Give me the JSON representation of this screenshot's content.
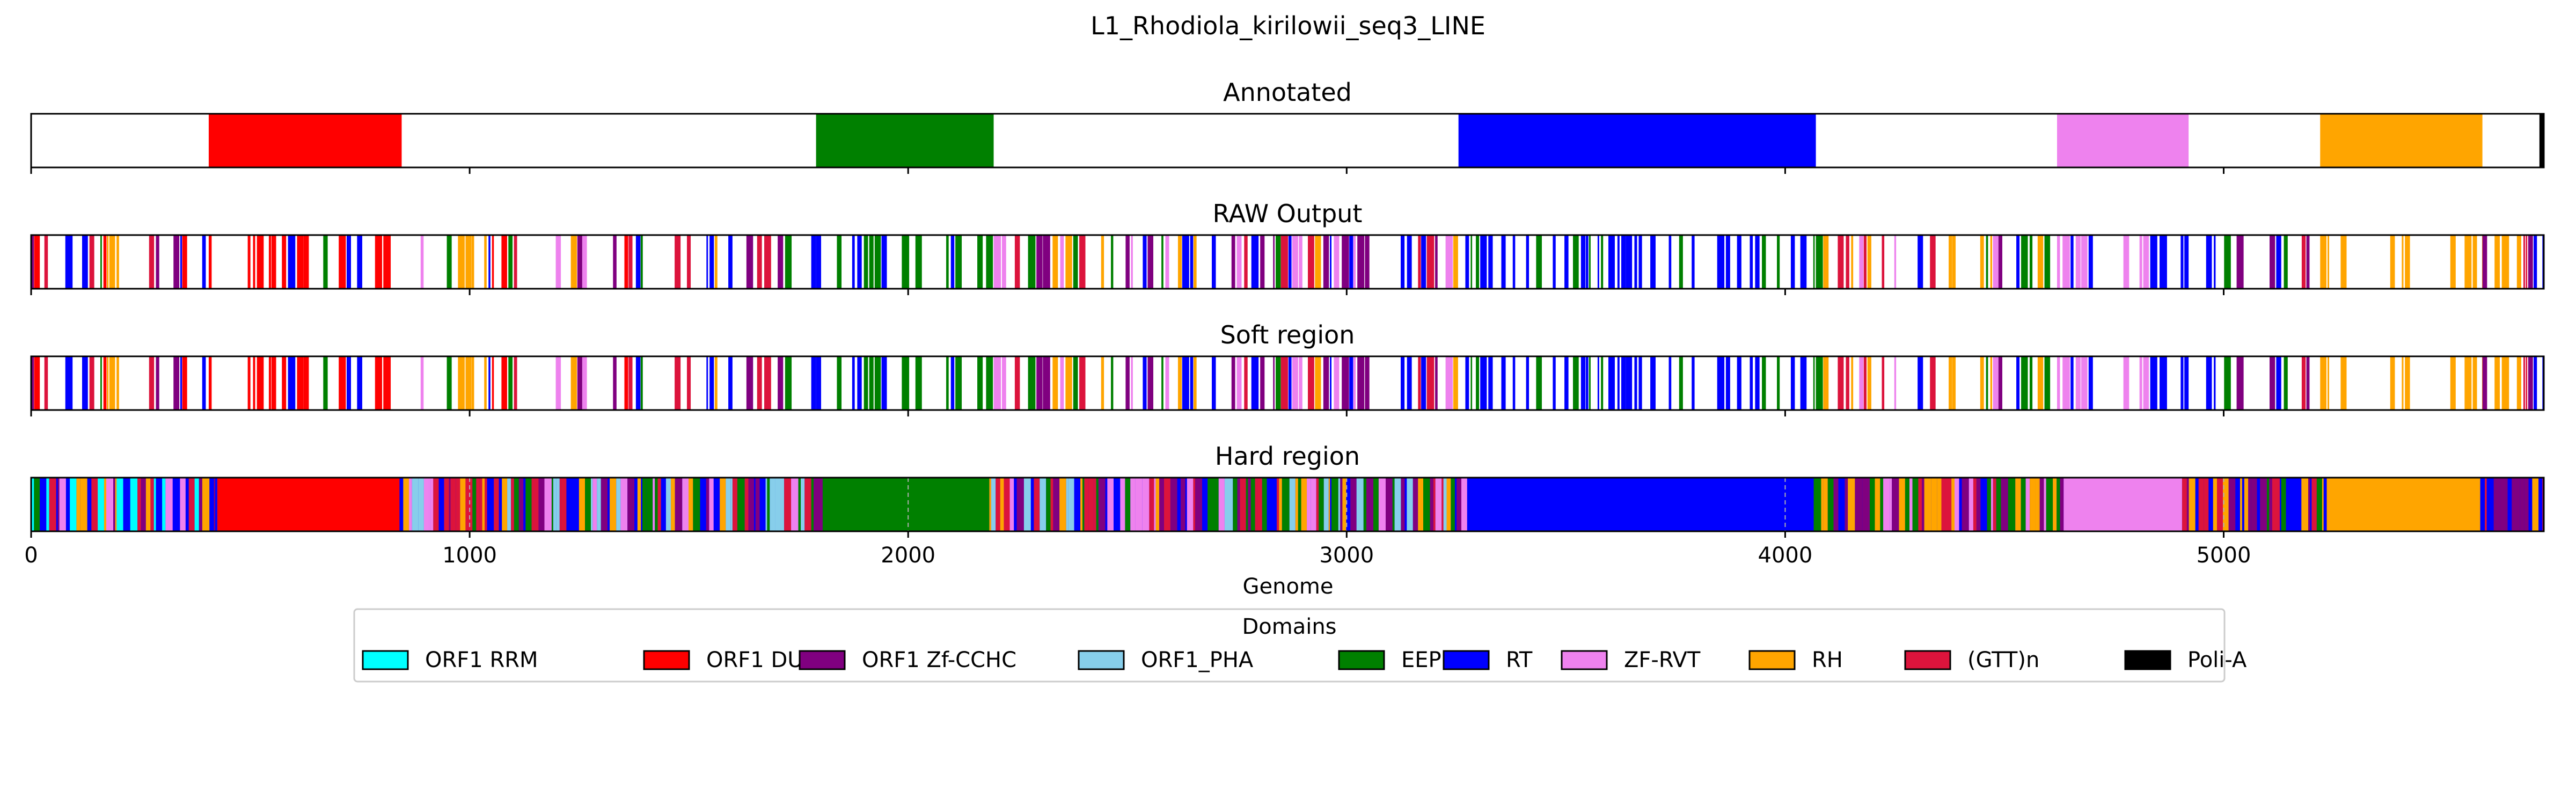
{
  "chart_data": {
    "type": "genome-track",
    "title": "L1_Rhodiola_kirilowii_seq3_LINE",
    "xlabel": "Genome",
    "xlim": [
      0,
      5730
    ],
    "xticks": [
      0,
      1000,
      2000,
      3000,
      4000,
      5000
    ],
    "tick_labels": [
      "0",
      "1000",
      "2000",
      "3000",
      "4000",
      "5000"
    ],
    "grid": "dashed vertical lines at x ticks (Hard region panel only)",
    "panels": [
      {
        "name": "Annotated",
        "segments": [
          {
            "domain": "ORF1 DUF",
            "start": 405,
            "end": 845
          },
          {
            "domain": "EEP",
            "start": 1790,
            "end": 2195
          },
          {
            "domain": "RT",
            "start": 3255,
            "end": 4070
          },
          {
            "domain": "ZF-RVT",
            "start": 4620,
            "end": 4920
          },
          {
            "domain": "RH",
            "start": 5220,
            "end": 5590
          },
          {
            "domain": "Poli-A",
            "start": 5720,
            "end": 5730
          }
        ]
      },
      {
        "name": "RAW Output",
        "pattern": {
          "seed": 11,
          "density": 0.55,
          "background": "white"
        },
        "regions": [
          {
            "start": 0,
            "end": 405,
            "colors": [
              "RT",
              "ORF1 Zf-CCHC",
              "(GTT)n",
              "RH",
              "EEP",
              "ORF1 DUF"
            ]
          },
          {
            "start": 405,
            "end": 845,
            "colors": [
              "ORF1 DUF",
              "ORF1 DUF",
              "ORF1 DUF",
              "RT",
              "EEP"
            ]
          },
          {
            "start": 845,
            "end": 1790,
            "colors": [
              "RT",
              "EEP",
              "RH",
              "ORF1 Zf-CCHC",
              "(GTT)n",
              "ZF-RVT",
              "ORF1 DUF"
            ]
          },
          {
            "start": 1790,
            "end": 2195,
            "colors": [
              "EEP",
              "EEP",
              "EEP",
              "RT"
            ]
          },
          {
            "start": 2195,
            "end": 3255,
            "colors": [
              "RT",
              "EEP",
              "RH",
              "ORF1 Zf-CCHC",
              "(GTT)n",
              "ZF-RVT"
            ]
          },
          {
            "start": 3255,
            "end": 4070,
            "colors": [
              "RT",
              "RT",
              "RT",
              "EEP"
            ]
          },
          {
            "start": 4070,
            "end": 4620,
            "colors": [
              "RT",
              "EEP",
              "RH",
              "(GTT)n",
              "ORF1 Zf-CCHC",
              "ZF-RVT"
            ]
          },
          {
            "start": 4620,
            "end": 4920,
            "colors": [
              "ZF-RVT",
              "ZF-RVT",
              "RT"
            ]
          },
          {
            "start": 4920,
            "end": 5220,
            "colors": [
              "RT",
              "RH",
              "EEP",
              "(GTT)n",
              "ORF1 Zf-CCHC"
            ]
          },
          {
            "start": 5220,
            "end": 5590,
            "colors": [
              "RH",
              "RH",
              "RT"
            ]
          },
          {
            "start": 5590,
            "end": 5730,
            "colors": [
              "RT",
              "(GTT)n",
              "ORF1 Zf-CCHC",
              "RH"
            ]
          }
        ]
      },
      {
        "name": "Soft region",
        "pattern": {
          "seed": 11,
          "density": 0.55,
          "background": "white"
        },
        "regions": [
          {
            "start": 0,
            "end": 405,
            "colors": [
              "RT",
              "ORF1 Zf-CCHC",
              "(GTT)n",
              "RH",
              "EEP",
              "ORF1 DUF"
            ]
          },
          {
            "start": 405,
            "end": 845,
            "colors": [
              "ORF1 DUF",
              "ORF1 DUF",
              "ORF1 DUF",
              "RT",
              "EEP"
            ]
          },
          {
            "start": 845,
            "end": 1790,
            "colors": [
              "RT",
              "EEP",
              "RH",
              "ORF1 Zf-CCHC",
              "(GTT)n",
              "ZF-RVT",
              "ORF1 DUF"
            ]
          },
          {
            "start": 1790,
            "end": 2195,
            "colors": [
              "EEP",
              "EEP",
              "EEP",
              "RT"
            ]
          },
          {
            "start": 2195,
            "end": 3255,
            "colors": [
              "RT",
              "EEP",
              "RH",
              "ORF1 Zf-CCHC",
              "(GTT)n",
              "ZF-RVT"
            ]
          },
          {
            "start": 3255,
            "end": 4070,
            "colors": [
              "RT",
              "RT",
              "RT",
              "EEP"
            ]
          },
          {
            "start": 4070,
            "end": 4620,
            "colors": [
              "RT",
              "EEP",
              "RH",
              "(GTT)n",
              "ORF1 Zf-CCHC",
              "ZF-RVT"
            ]
          },
          {
            "start": 4620,
            "end": 4920,
            "colors": [
              "ZF-RVT",
              "ZF-RVT",
              "RT"
            ]
          },
          {
            "start": 4920,
            "end": 5220,
            "colors": [
              "RT",
              "RH",
              "EEP",
              "(GTT)n",
              "ORF1 Zf-CCHC"
            ]
          },
          {
            "start": 5220,
            "end": 5590,
            "colors": [
              "RH",
              "RH",
              "RT"
            ]
          },
          {
            "start": 5590,
            "end": 5730,
            "colors": [
              "RT",
              "(GTT)n",
              "ORF1 Zf-CCHC",
              "RH"
            ]
          }
        ]
      },
      {
        "name": "Hard region",
        "solid_segments": [
          {
            "domain": "ORF1 DUF",
            "start": 425,
            "end": 840
          },
          {
            "domain": "EEP",
            "start": 1805,
            "end": 2185
          },
          {
            "domain": "RT",
            "start": 3275,
            "end": 4065
          },
          {
            "domain": "ZF-RVT",
            "start": 4635,
            "end": 4905
          },
          {
            "domain": "RH",
            "start": 5235,
            "end": 5585
          }
        ],
        "pattern": {
          "seed": 29,
          "density": 1.0,
          "background": "RT"
        },
        "regions": [
          {
            "start": 0,
            "end": 425,
            "colors": [
              "RT",
              "RT",
              "ORF1 Zf-CCHC",
              "(GTT)n",
              "RH",
              "EEP",
              "ZF-RVT",
              "ORF1 RRM"
            ]
          },
          {
            "start": 840,
            "end": 1805,
            "colors": [
              "RT",
              "EEP",
              "RH",
              "ORF1 Zf-CCHC",
              "(GTT)n",
              "ZF-RVT",
              "ORF1_PHA"
            ]
          },
          {
            "start": 2185,
            "end": 3275,
            "colors": [
              "RT",
              "EEP",
              "RH",
              "ORF1 Zf-CCHC",
              "(GTT)n",
              "ZF-RVT",
              "ORF1_PHA"
            ]
          },
          {
            "start": 4065,
            "end": 4635,
            "colors": [
              "RT",
              "EEP",
              "RH",
              "(GTT)n",
              "ORF1 Zf-CCHC",
              "ZF-RVT"
            ]
          },
          {
            "start": 4905,
            "end": 5235,
            "colors": [
              "RT",
              "EEP",
              "RH",
              "(GTT)n",
              "ORF1 Zf-CCHC"
            ]
          },
          {
            "start": 5585,
            "end": 5730,
            "colors": [
              "RT",
              "(GTT)n",
              "ORF1 Zf-CCHC",
              "RH"
            ]
          }
        ]
      }
    ],
    "legend": {
      "title": "Domains",
      "placement": "bottom-center",
      "entries": [
        {
          "label": "ORF1 RRM",
          "color": "#00ffff"
        },
        {
          "label": "ORF1 DUF",
          "color": "#ff0000"
        },
        {
          "label": "ORF1 Zf-CCHC",
          "color": "#800080"
        },
        {
          "label": "ORF1_PHA",
          "color": "#87ceeb"
        },
        {
          "label": "EEP",
          "color": "#008000"
        },
        {
          "label": "RT",
          "color": "#0000ff"
        },
        {
          "label": "ZF-RVT",
          "color": "#ee82ee"
        },
        {
          "label": "RH",
          "color": "#ffa500"
        },
        {
          "label": "(GTT)n",
          "color": "#dc143c"
        },
        {
          "label": "Poli-A",
          "color": "#000000"
        }
      ]
    }
  }
}
